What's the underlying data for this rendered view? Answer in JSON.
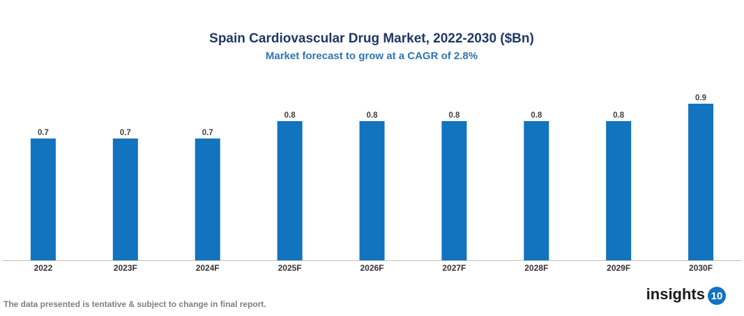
{
  "chart_data": {
    "type": "bar",
    "title": "Spain Cardiovascular Drug Market, 2022-2030 ($Bn)",
    "subtitle": "Market forecast to grow at a CAGR of 2.8%",
    "categories": [
      "2022",
      "2023F",
      "2024F",
      "2025F",
      "2026F",
      "2027F",
      "2028F",
      "2029F",
      "2030F"
    ],
    "values": [
      0.7,
      0.7,
      0.7,
      0.8,
      0.8,
      0.8,
      0.8,
      0.8,
      0.9
    ],
    "color": "#1273be",
    "ylim": [
      0,
      1
    ]
  },
  "footer": {
    "note": "The data presented is tentative & subject to change in final report.",
    "logo_text": "insights",
    "logo_number": "10"
  }
}
